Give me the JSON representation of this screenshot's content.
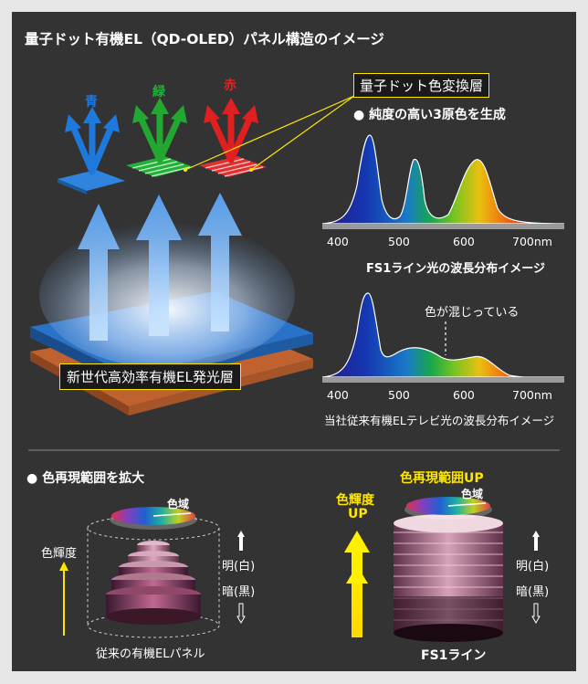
{
  "title": "量子ドット有機EL（QD-OLED）パネル構造のイメージ",
  "top": {
    "arrow_labels": {
      "blue": "青",
      "green": "緑",
      "red": "赤"
    },
    "qd_layer_label": "量子ドット色変換層",
    "el_layer_label": "新世代高効率有機EL発光層",
    "bullet_pure": "● 純度の高い3原色を生成",
    "spectrum1": {
      "ticks": [
        "400",
        "500",
        "600",
        "700nm"
      ],
      "caption": "FS1ライン光の波長分布イメージ"
    },
    "spectrum2": {
      "ticks": [
        "400",
        "500",
        "600",
        "700nm"
      ],
      "caption": "当社従来有機ELテレビ光の波長分布イメージ",
      "annotation": "色が混じっている"
    }
  },
  "bottom": {
    "bullet_expand": "● 色再現範囲を拡大",
    "left": {
      "gamut_label": "色域",
      "lum_label": "色輝度",
      "bright_label": "明(白)",
      "dark_label": "暗(黒)",
      "caption": "従来の有機ELパネル"
    },
    "right": {
      "gamut_up": "色再現範囲UP",
      "lum_up_line1": "色輝度",
      "lum_up_line2": "UP",
      "gamut_label": "色域",
      "bright_label": "明(白)",
      "dark_label": "暗(黒)",
      "caption": "FS1ライン"
    }
  },
  "colors": {
    "background": "#333334",
    "border": "#e6e6e6",
    "accent_yellow": "#ffe600",
    "label_box": "#1a1a1a",
    "blue": "#1f6fd6",
    "green": "#20b030",
    "red": "#e52222",
    "copper": "#c0622f"
  }
}
